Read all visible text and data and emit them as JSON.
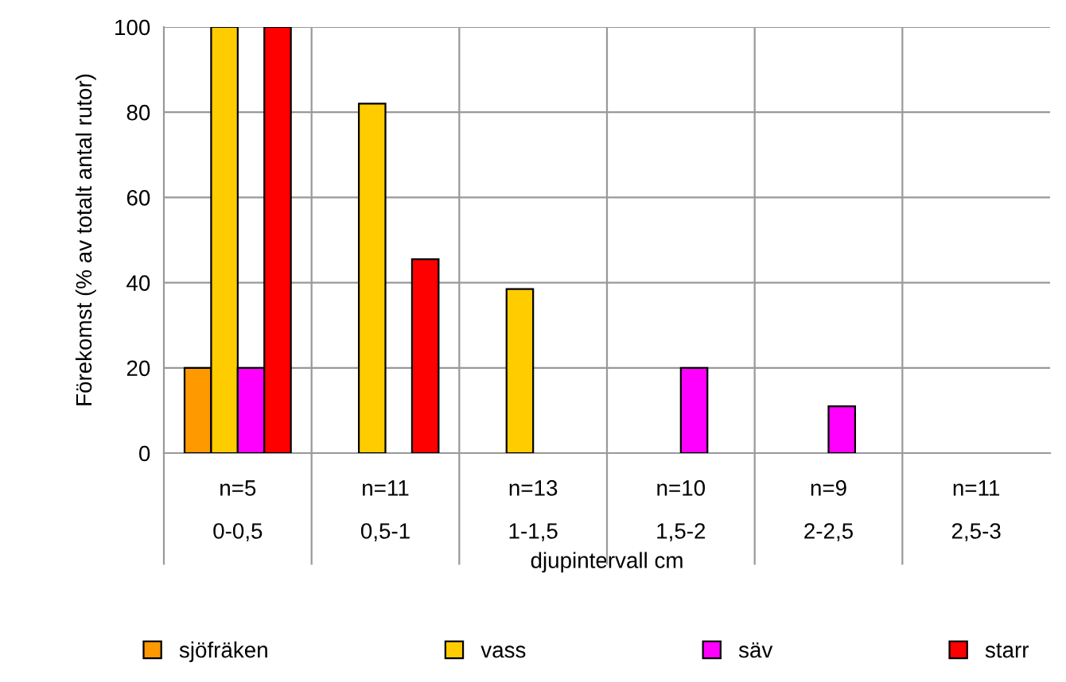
{
  "chart_data": {
    "type": "bar",
    "ylabel": "Förekomst (% av totalt antal rutor)",
    "xlabel": "djupintervall cm",
    "categories": [
      "n=5\n0-0,5",
      "n=11\n0,5-1",
      "n=13\n1-1,5",
      "n=10\n1,5-2",
      "n=9\n2-2,5",
      "n=11\n2,5-3"
    ],
    "series": [
      {
        "name": "sjöfräken",
        "color": "#ff9900",
        "values": [
          20,
          null,
          null,
          null,
          null,
          null
        ]
      },
      {
        "name": "vass",
        "color": "#ffcc00",
        "values": [
          100,
          82,
          38.5,
          null,
          null,
          null
        ]
      },
      {
        "name": "säv",
        "color": "#ff00ff",
        "values": [
          20,
          null,
          null,
          20,
          11,
          null
        ]
      },
      {
        "name": "starr",
        "color": "#ff0000",
        "values": [
          100,
          45.5,
          null,
          null,
          null,
          null
        ]
      }
    ],
    "ylim": [
      0,
      100
    ],
    "yticks": [
      0,
      20,
      40,
      60,
      80,
      100
    ],
    "grid": true,
    "legend": "bottom"
  }
}
